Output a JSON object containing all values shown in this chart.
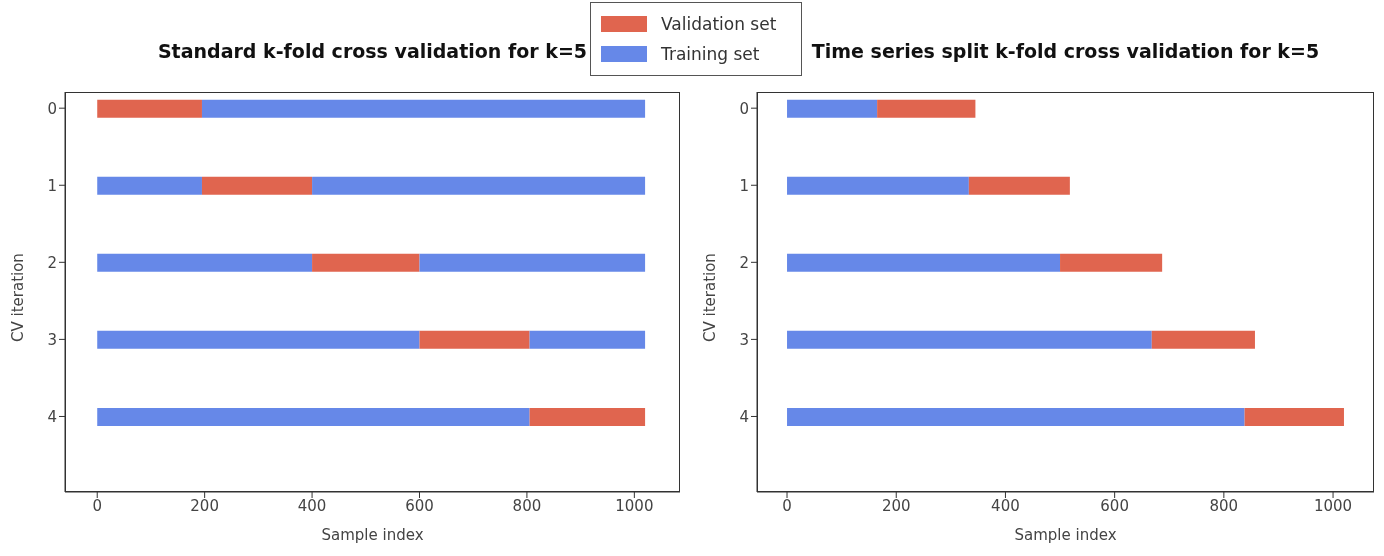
{
  "chart_data": [
    {
      "type": "bar",
      "orientation": "horizontal",
      "stacked": true,
      "title": "Standard k-fold cross validation for k=5",
      "xlabel": "Sample index",
      "ylabel": "CV iteration",
      "categories": [
        "0",
        "1",
        "2",
        "3",
        "4"
      ],
      "series": [
        {
          "name": "Training set",
          "color": "#6688e8",
          "values": [
            0,
            195,
            400,
            600,
            805
          ]
        },
        {
          "name": "Validation set",
          "color": "#e0654f",
          "values": [
            195,
            205,
            200,
            205,
            215
          ]
        },
        {
          "color": "#6688e8",
          "values": [
            825,
            620,
            420,
            215,
            0
          ]
        }
      ],
      "xlim": [
        -60,
        1085
      ],
      "xticks": [
        0,
        200,
        400,
        600,
        800,
        1000
      ],
      "legend": "top right"
    },
    {
      "type": "bar",
      "orientation": "horizontal",
      "stacked": true,
      "title": "Time series split k-fold cross validation for k=5",
      "xlabel": "Sample index",
      "ylabel": "CV iteration",
      "categories": [
        "0",
        "1",
        "2",
        "3",
        "4"
      ],
      "series": [
        {
          "color": "#6688e8",
          "values": [
            165,
            333,
            500,
            668,
            838
          ]
        },
        {
          "color": "#e0654f",
          "values": [
            180,
            185,
            187,
            189,
            182
          ]
        }
      ],
      "xlim": [
        -55,
        1075
      ],
      "xticks": [
        0,
        200,
        400,
        600,
        800,
        1000
      ]
    }
  ]
}
